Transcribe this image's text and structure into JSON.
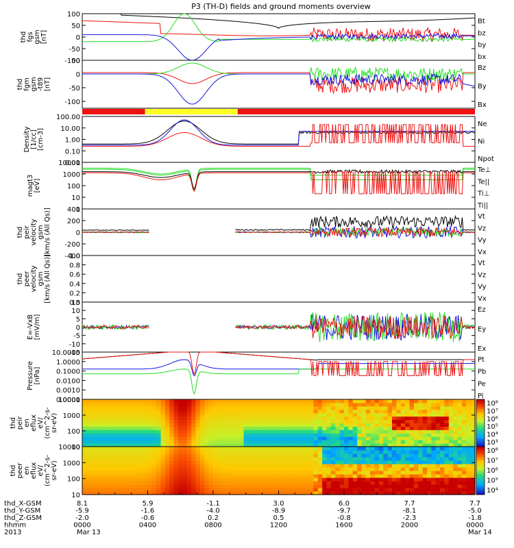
{
  "title": "P3 (TH-D) fields and ground moments overview",
  "colors": {
    "black": "#000000",
    "red": "#ee1111",
    "green": "#22dd22",
    "blue": "#1111dd",
    "yellow": "#ffff22"
  },
  "chart_data": {
    "type": "line",
    "x_start": "2013-03-13 00:00",
    "x_end": "2013-03-14 00:00",
    "panels": [
      {
        "id": "fgs",
        "ylabel": [
          "thd",
          "fgs",
          "gsm",
          "[nT]"
        ],
        "yrange": [
          -100,
          100
        ],
        "log": false,
        "ticks": [
          "100",
          "50",
          "0",
          "-50",
          "-100"
        ],
        "legend": [
          {
            "t": "Bt",
            "c": "black"
          },
          {
            "t": "bz",
            "c": "red"
          },
          {
            "t": "by",
            "c": "green"
          },
          {
            "t": "bx",
            "c": "blue"
          }
        ]
      },
      {
        "id": "fgm",
        "ylabel": [
          "thd",
          "fgm",
          "gsm",
          "-t89",
          "[nT]"
        ],
        "yrange": [
          -125,
          50
        ],
        "log": false,
        "ticks": [
          "50",
          "0",
          "-50",
          "-100"
        ],
        "legend": [
          {
            "t": "Bz",
            "c": "red"
          },
          {
            "t": "By",
            "c": "green"
          },
          {
            "t": "Bx",
            "c": "blue"
          }
        ]
      },
      {
        "id": "density",
        "ylabel": [
          "Density",
          "[1/cc]",
          "[cm-3]"
        ],
        "yrange": [
          0.01,
          100
        ],
        "log": true,
        "ticks": [
          "100.00",
          "10.00",
          "1.00",
          "0.10",
          "0.01"
        ],
        "legend": [
          {
            "t": "Ne",
            "c": "red"
          },
          {
            "t": "Ni",
            "c": "black"
          },
          {
            "t": "Npot",
            "c": "blue"
          }
        ]
      },
      {
        "id": "temp",
        "ylabel": [
          "magt3",
          "[eV]"
        ],
        "yrange": [
          1,
          10000
        ],
        "log": true,
        "ticks": [
          "10000",
          "1000",
          "100",
          "10",
          "1"
        ],
        "legend": [
          {
            "t": "Te⊥",
            "c": "red"
          },
          {
            "t": "Te||",
            "c": "black"
          },
          {
            "t": "Ti⊥",
            "c": "green"
          },
          {
            "t": "Ti||",
            "c": "green"
          }
        ]
      },
      {
        "id": "vi",
        "ylabel": [
          "thd",
          "peir",
          "velocity",
          "gsm",
          "[km/s (All Qs)]"
        ],
        "yrange": [
          -400,
          400
        ],
        "log": false,
        "ticks": [
          "400",
          "200",
          "0",
          "-200",
          "-400"
        ],
        "legend": [
          {
            "t": "Vt",
            "c": "black"
          },
          {
            "t": "Vz",
            "c": "red"
          },
          {
            "t": "Vy",
            "c": "green"
          },
          {
            "t": "Vx",
            "c": "blue"
          }
        ]
      },
      {
        "id": "ve",
        "ylabel": [
          "thd",
          "peer",
          "velocity",
          "gsm",
          "[km/s (All Qs)]"
        ],
        "yrange": [
          0,
          1
        ],
        "log": false,
        "ticks": [
          "1.0",
          "0.8",
          "0.6",
          "0.4",
          "0.2",
          "0.0"
        ],
        "legend": [
          {
            "t": "Vt",
            "c": "black"
          },
          {
            "t": "Vz",
            "c": "red"
          },
          {
            "t": "Vy",
            "c": "green"
          },
          {
            "t": "Vx",
            "c": "blue"
          }
        ]
      },
      {
        "id": "efield",
        "ylabel": [
          "E=-VxB",
          "[mV/m]"
        ],
        "yrange": [
          -15,
          15
        ],
        "log": false,
        "ticks": [
          "15",
          "10",
          "5",
          "0",
          "-5",
          "-10",
          "-15"
        ],
        "legend": [
          {
            "t": "Ez",
            "c": "red"
          },
          {
            "t": "Ey",
            "c": "green"
          },
          {
            "t": "Ex",
            "c": "blue"
          }
        ]
      },
      {
        "id": "pressure",
        "ylabel": [
          "Pressure",
          "[nPa]"
        ],
        "yrange": [
          0.0001,
          10
        ],
        "log": true,
        "ticks": [
          "10.0000",
          "1.0000",
          "0.1000",
          "0.0100",
          "0.0010",
          "0.0001"
        ],
        "legend": [
          {
            "t": "Pt",
            "c": "black"
          },
          {
            "t": "Pb",
            "c": "red"
          },
          {
            "t": "Pe",
            "c": "green"
          },
          {
            "t": "Pi",
            "c": "blue"
          }
        ]
      },
      {
        "id": "ion_spec",
        "ylabel": [
          "thd",
          "peir",
          "en",
          "eflux",
          "eV/",
          "(cm^2-s-",
          "sr-eV)"
        ],
        "yrange": [
          10,
          10000
        ],
        "log": true,
        "ticks": [
          "10000",
          "1000",
          "100",
          "10"
        ],
        "colorbar_ticks": [
          "10⁸",
          "10⁷",
          "10⁶",
          "10⁵",
          "10⁴",
          "10³"
        ]
      },
      {
        "id": "ele_spec",
        "ylabel": [
          "thd",
          "peer",
          "en",
          "eflux",
          "eV/",
          "(cm^2-s-",
          "sr-eV)"
        ],
        "yrange": [
          10,
          10000
        ],
        "log": true,
        "ticks": [
          "10000",
          "1000",
          "100",
          "10"
        ],
        "colorbar_ticks": [
          "10⁸",
          "10⁷",
          "10⁶",
          "10⁵",
          "10⁴"
        ]
      }
    ],
    "mode_bar": [
      {
        "from": "0000",
        "to": "0350",
        "color": "red"
      },
      {
        "from": "0350",
        "to": "0930",
        "color": "yellow"
      },
      {
        "from": "0930",
        "to": "2400",
        "color": "red"
      }
    ]
  },
  "x_axis": {
    "row_labels": [
      "thd_X-GSM",
      "thd_Y-GSM",
      "thd_Z-GSM",
      "hhmm",
      "2013"
    ],
    "columns": [
      {
        "x": "8.1",
        "y": "-5.9",
        "z": "-2.0",
        "t": "0000",
        "d": "Mar 13"
      },
      {
        "x": "5.9",
        "y": "-1.6",
        "z": "-0.6",
        "t": "0400",
        "d": ""
      },
      {
        "x": "-1.1",
        "y": "-4.0",
        "z": "0.2",
        "t": "0800",
        "d": ""
      },
      {
        "x": "3.0",
        "y": "-8.9",
        "z": "0.5",
        "t": "1200",
        "d": ""
      },
      {
        "x": "6.0",
        "y": "-9.7",
        "z": "-0.8",
        "t": "1600",
        "d": ""
      },
      {
        "x": "7.7",
        "y": "-8.1",
        "z": "-2.3",
        "t": "2000",
        "d": ""
      },
      {
        "x": "7.7",
        "y": "-5.0",
        "z": "-1.8",
        "t": "0000",
        "d": "Mar 14"
      }
    ]
  }
}
